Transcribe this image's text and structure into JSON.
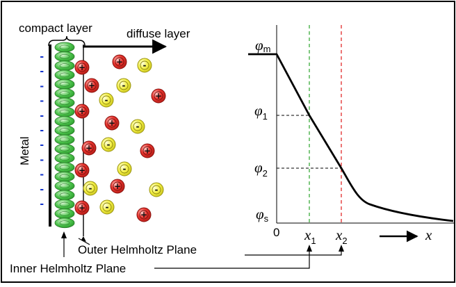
{
  "labels": {
    "compact_layer": "compact layer",
    "diffuse_layer": "diffuse layer",
    "metal": "Metal",
    "outer_helmholtz_plane": "Outer Helmholtz Plane",
    "inner_helmholtz_plane": "Inner Helmholtz Plane"
  },
  "symbols": {
    "charge_positive": "+",
    "charge_negative": "-",
    "electrode_charge": "-"
  },
  "graph": {
    "phi_symbol": "φ",
    "phi_m_sub": "m",
    "phi_1_sub": "1",
    "phi_2_sub": "2",
    "phi_s_sub": "s",
    "origin": "0",
    "x1_symbol": "x",
    "x1_sub": "1",
    "x2_symbol": "x",
    "x2_sub": "2",
    "x_axis": "x"
  },
  "colors": {
    "cation_fill": "#e8352f",
    "anion_fill": "#f3ef46",
    "dipole_fill": "#4cc34c",
    "negative_charge": "#1133cc",
    "x1_guide": "#2aa42a",
    "x2_guide": "#e01818",
    "border": "#000000"
  }
}
